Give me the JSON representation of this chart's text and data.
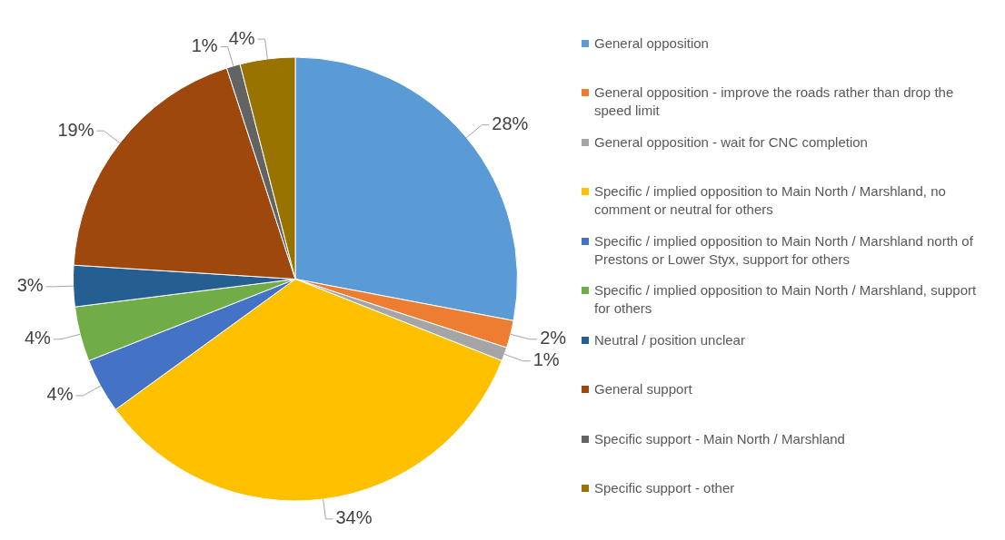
{
  "chart_data": {
    "type": "pie",
    "categories": [
      "General opposition",
      "General opposition - improve the roads rather than drop the speed limit",
      "General opposition - wait for CNC completion",
      "Specific / implied opposition to Main North / Marshland, no comment or neutral for others",
      "Specific / implied opposition to Main North / Marshland north of Prestons or Lower Styx, support for others",
      "Specific / implied opposition to Main North / Marshland, support for others",
      "Neutral / position unclear",
      "General support",
      "Specific support - Main North / Marshland",
      "Specific support - other"
    ],
    "values": [
      28,
      2,
      1,
      34,
      4,
      4,
      3,
      19,
      1,
      4
    ],
    "colors": [
      "#5b9bd5",
      "#ed7d31",
      "#a5a5a5",
      "#ffc000",
      "#4472c4",
      "#70ad47",
      "#255e91",
      "#9e480e",
      "#636363",
      "#997300"
    ],
    "value_labels": [
      "28%",
      "2%",
      "1%",
      "34%",
      "4%",
      "4%",
      "3%",
      "19%",
      "1%",
      "4%"
    ],
    "legend": "right"
  }
}
